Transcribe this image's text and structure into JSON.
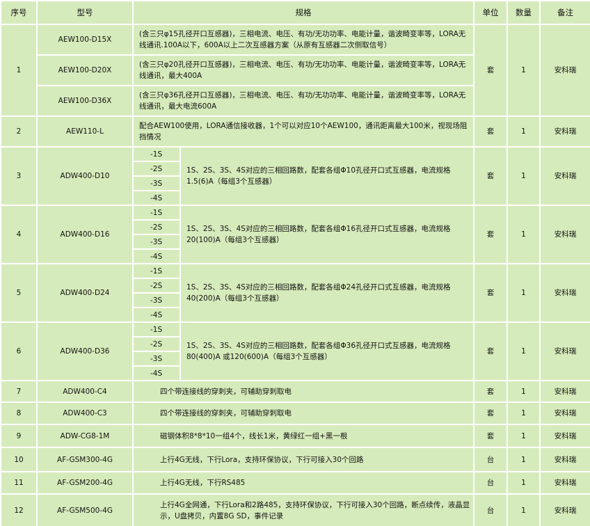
{
  "table": {
    "header": [
      "序号",
      "型号",
      "规格",
      "单位",
      "数量",
      "备注"
    ],
    "rows": [
      {
        "no": "1",
        "models": [
          {
            "model": "AEW100-D15X",
            "spec": "(含三只φ15孔径开口互感器)，三相电流、电压、有功/无功功率、电能计量，谐波畸变率等，LORA无线通讯.100A以下，600A以上二次互感器方案（从原有互感器二次侧取信号）"
          },
          {
            "model": "AEW100-D20X",
            "spec": "(含三只φ20孔径开口互感器)，三相电流、电压、有功/无功功率、电能计量，谐波畸变率等，LORA无线通讯，最大400A"
          },
          {
            "model": "AEW100-D36X",
            "spec": "(含三只φ36孔径开口互感器)，三相电流、电压、有功/无功功率、电能计量，谐波畸变率等，LORA无线通讯，最大电流600A"
          }
        ],
        "unit": "套",
        "qty": "1",
        "remark": "安科瑞"
      },
      {
        "no": "2",
        "model": "AEW110-L",
        "spec": "配合AEW100使用，LORA通信接收器，1个可以对应10个AEW100，通讯距离最大100米，视现场阻挡情况",
        "unit": "套",
        "qty": "1",
        "remark": "安科瑞"
      },
      {
        "no": "3",
        "model": "ADW400-D10",
        "options": [
          "-1S",
          "-2S",
          "-3S",
          "-4S"
        ],
        "spec": "1S、2S、3S、4S对应的三相回路数，配套各组Φ10孔径开口式互感器，电流规格1.5(6)A（每组3个互感器）",
        "unit": "套",
        "qty": "1",
        "remark": "安科瑞"
      },
      {
        "no": "4",
        "model": "ADW400-D16",
        "options": [
          "-1S",
          "-2S",
          "-3S",
          "-4S"
        ],
        "spec": "1S、2S、3S、4S对应的三相回路数，配套各组Φ16孔径开口式互感器，电流规格20(100)A（每组3个互感器）",
        "unit": "套",
        "qty": "1",
        "remark": "安科瑞"
      },
      {
        "no": "5",
        "model": "ADW400-D24",
        "options": [
          "-1S",
          "-2S",
          "-3S",
          "-4S"
        ],
        "spec": "1S、2S、3S、4S对应的三相回路数，配套各组Φ24孔径开口式互感器，电流规格40(200)A（每组3个互感器）",
        "unit": "套",
        "qty": "1",
        "remark": "安科瑞"
      },
      {
        "no": "6",
        "model": "ADW400-D36",
        "options": [
          "-1S",
          "-2S",
          "-3S",
          "-4S"
        ],
        "spec": "1S、2S、3S、4S对应的三相回路数，配套各组Φ36孔径开口式互感器，电流规格80(400)A 或120(600)A（每组3个互感器）",
        "unit": "套",
        "qty": "1",
        "remark": "安科瑞"
      },
      {
        "no": "7",
        "model": "ADW400-C4",
        "spec": "四个带连接线的穿刺夹，可辅助穿刺取电",
        "unit": "套",
        "qty": "1",
        "remark": "安科瑞"
      },
      {
        "no": "8",
        "model": "ADW400-C3",
        "spec": "四个带连接线的穿刺夹，可辅助穿刺取电",
        "unit": "套",
        "qty": "1",
        "remark": "安科瑞"
      },
      {
        "no": "9",
        "model": "ADW-CG8-1M",
        "spec": "磁钢体积8*8*10一组4个，线长1米，黄绿红一组+黑一根",
        "unit": "套",
        "qty": "1",
        "remark": "安科瑞"
      },
      {
        "no": "10",
        "model": "AF-GSM300-4G",
        "spec": "上行4G无线，下行Lora，支持环保协议，下行可接入30个回路",
        "unit": "台",
        "qty": "1",
        "remark": "安科瑞"
      },
      {
        "no": "11",
        "model": "AF-GSM200-4G",
        "spec": "上行4G无线，下行RS485",
        "unit": "台",
        "qty": "1",
        "remark": "安科瑞"
      },
      {
        "no": "12",
        "model": "AF-GSM500-4G",
        "spec": "上行4G全网通，下行Lora和2路485，支持环保协议，下行可接入30个回路，断点续传，液晶显示，U盘拷贝，内置8G SD，事件记录",
        "unit": "台",
        "qty": "1",
        "remark": "安科瑞"
      }
    ]
  }
}
